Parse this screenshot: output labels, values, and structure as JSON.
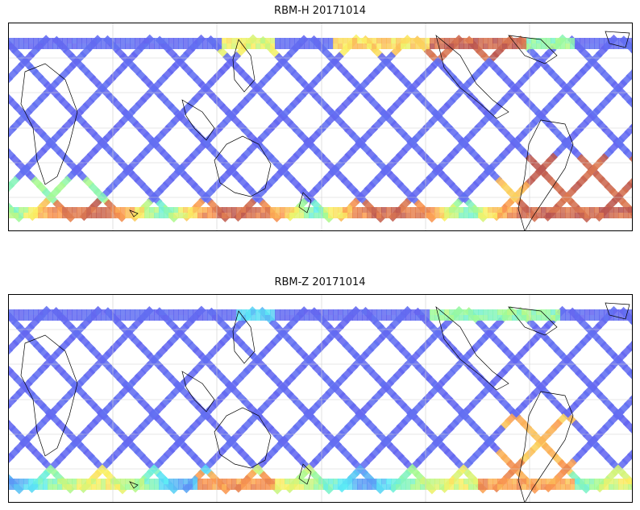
{
  "figure": {
    "panels": [
      {
        "title": "RBM-H 20171014"
      },
      {
        "title": "RBM-Z 20171014"
      }
    ]
  },
  "colors": {
    "background": "#ffffff",
    "frame": "#000000",
    "coastline": "#000000",
    "gridline": "#cfcfcf",
    "colormap_low": "#6464f0",
    "colormap_high": "#b45050"
  }
}
